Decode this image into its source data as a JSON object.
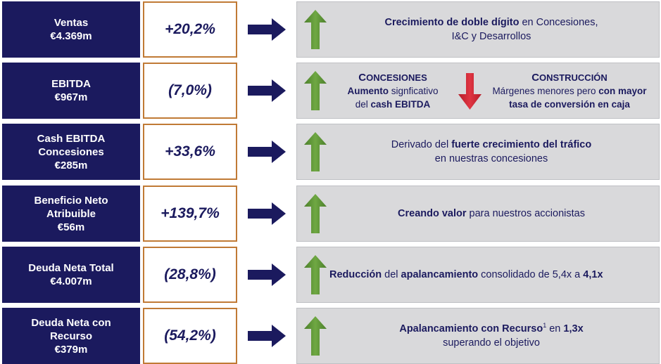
{
  "rows": [
    {
      "metric": [
        "Ventas",
        "€4.369m"
      ],
      "change": "+20,2%",
      "text": {
        "bold1": "Crecimiento de doble dígito",
        "plain1": " en Concesiones,",
        "plain2": "I&C y Desarrollos"
      }
    },
    {
      "metric": [
        "EBITDA",
        "€967m"
      ],
      "change": "(7,0%)",
      "concesiones": {
        "head_first": "C",
        "head_rest": "ONCESIONES",
        "bold1": "Aumento",
        "plain1": " signficativo",
        "plain2": "del ",
        "bold2": "cash EBITDA"
      },
      "construccion": {
        "head_first": "C",
        "head_rest": "ONSTRUCCIÓN",
        "plain1": "Márgenes menores pero ",
        "bold1": "con mayor",
        "bold2": "tasa de conversión en caja"
      }
    },
    {
      "metric": [
        "Cash EBITDA",
        "Concesiones",
        "€285m"
      ],
      "change": "+33,6%",
      "text": {
        "plain1": "Derivado del ",
        "bold1": "fuerte crecimiento del tráfico",
        "plain2": "en nuestras concesiones"
      }
    },
    {
      "metric": [
        "Beneficio Neto",
        "Atribuible",
        "€56m"
      ],
      "change": "+139,7%",
      "text": {
        "bold1": "Creando valor",
        "plain1": " para nuestros accionistas"
      }
    },
    {
      "metric": [
        "Deuda Neta Total",
        "€4.007m"
      ],
      "change": "(28,8%)",
      "text": {
        "bold1": "Reducción",
        "plain1": " del ",
        "bold2": "apalancamiento",
        "plain2": " consolidado de 5,4x a ",
        "bold3": "4,1x"
      }
    },
    {
      "metric": [
        "Deuda Neta con",
        "Recurso",
        "€379m"
      ],
      "change": "(54,2%)",
      "text": {
        "bold1": "Apalancamiento con Recurso",
        "sup": "1",
        "plain1": " en ",
        "bold2": "1,3x",
        "plain2": "superando el objetivo"
      }
    }
  ],
  "colors": {
    "navy": "#1b1a5e",
    "orange_border": "#c07a35",
    "panel_gray": "#d9d9db",
    "arrow_green": "#5a8f35",
    "arrow_red": "#d42a35"
  },
  "icons": {
    "right_arrow": "navy-right-arrow-icon",
    "up_arrow": "green-up-arrow-icon",
    "down_arrow": "red-down-arrow-icon"
  }
}
